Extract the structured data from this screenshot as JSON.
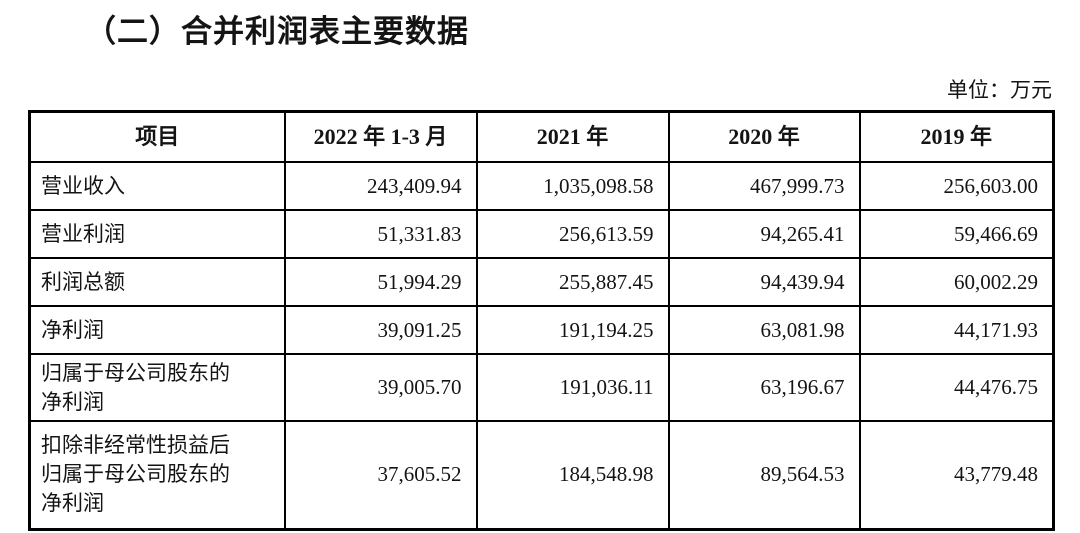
{
  "page": {
    "title": "（二）合并利润表主要数据",
    "unit_label": "单位：万元"
  },
  "table": {
    "columns": [
      "项目",
      "2022 年 1-3 月",
      "2021 年",
      "2020 年",
      "2019 年"
    ],
    "rows": [
      {
        "label": "营业收入",
        "values": [
          "243,409.94",
          "1,035,098.58",
          "467,999.73",
          "256,603.00"
        ]
      },
      {
        "label": "营业利润",
        "values": [
          "51,331.83",
          "256,613.59",
          "94,265.41",
          "59,466.69"
        ]
      },
      {
        "label": "利润总额",
        "values": [
          "51,994.29",
          "255,887.45",
          "94,439.94",
          "60,002.29"
        ]
      },
      {
        "label": "净利润",
        "values": [
          "39,091.25",
          "191,194.25",
          "63,081.98",
          "44,171.93"
        ]
      },
      {
        "label": "归属于母公司股东的\n净利润",
        "values": [
          "39,005.70",
          "191,036.11",
          "63,196.67",
          "44,476.75"
        ]
      },
      {
        "label": "扣除非经常性损益后\n归属于母公司股东的\n净利润",
        "values": [
          "37,605.52",
          "184,548.98",
          "89,564.53",
          "43,779.48"
        ]
      }
    ]
  }
}
